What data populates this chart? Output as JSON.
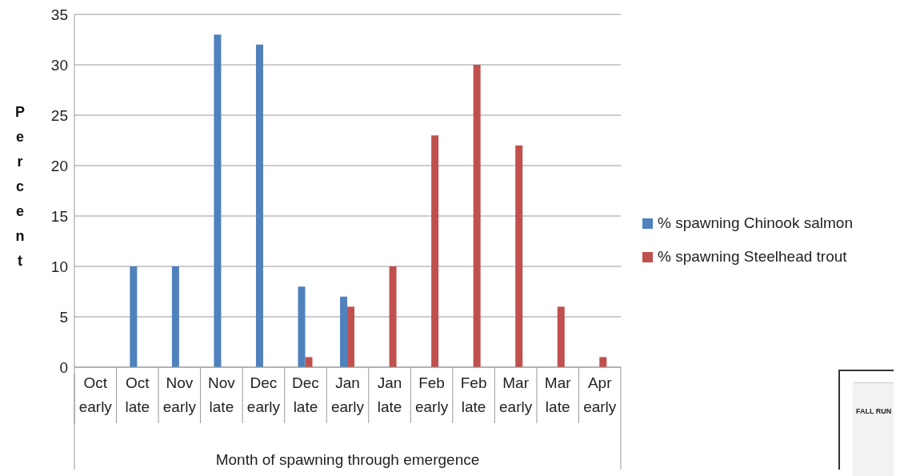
{
  "chart_data": {
    "type": "bar",
    "xlabel": "Month of spawning through emergence",
    "ylabel": "Percent",
    "categories": [
      "Oct early",
      "Oct late",
      "Nov early",
      "Nov late",
      "Dec early",
      "Dec late",
      "Jan early",
      "Jan late",
      "Feb early",
      "Feb late",
      "Mar early",
      "Mar late",
      "Apr early"
    ],
    "series": [
      {
        "name": "% spawning  Chinook salmon",
        "color": "#4f81bd",
        "values": [
          0,
          10,
          10,
          33,
          32,
          8,
          7,
          0,
          0,
          0,
          0,
          0,
          0
        ]
      },
      {
        "name": "% spawning  Steelhead trout",
        "color": "#c0504d",
        "values": [
          0,
          0,
          0,
          0,
          0,
          1,
          6,
          10,
          23,
          30,
          22,
          6,
          1
        ]
      }
    ],
    "ylim": [
      0,
      35
    ],
    "yticks": [
      0,
      5,
      10,
      15,
      20,
      25,
      30,
      35
    ],
    "grid": "y",
    "legend": "right",
    "annotations": [
      "FALL RUN"
    ]
  }
}
